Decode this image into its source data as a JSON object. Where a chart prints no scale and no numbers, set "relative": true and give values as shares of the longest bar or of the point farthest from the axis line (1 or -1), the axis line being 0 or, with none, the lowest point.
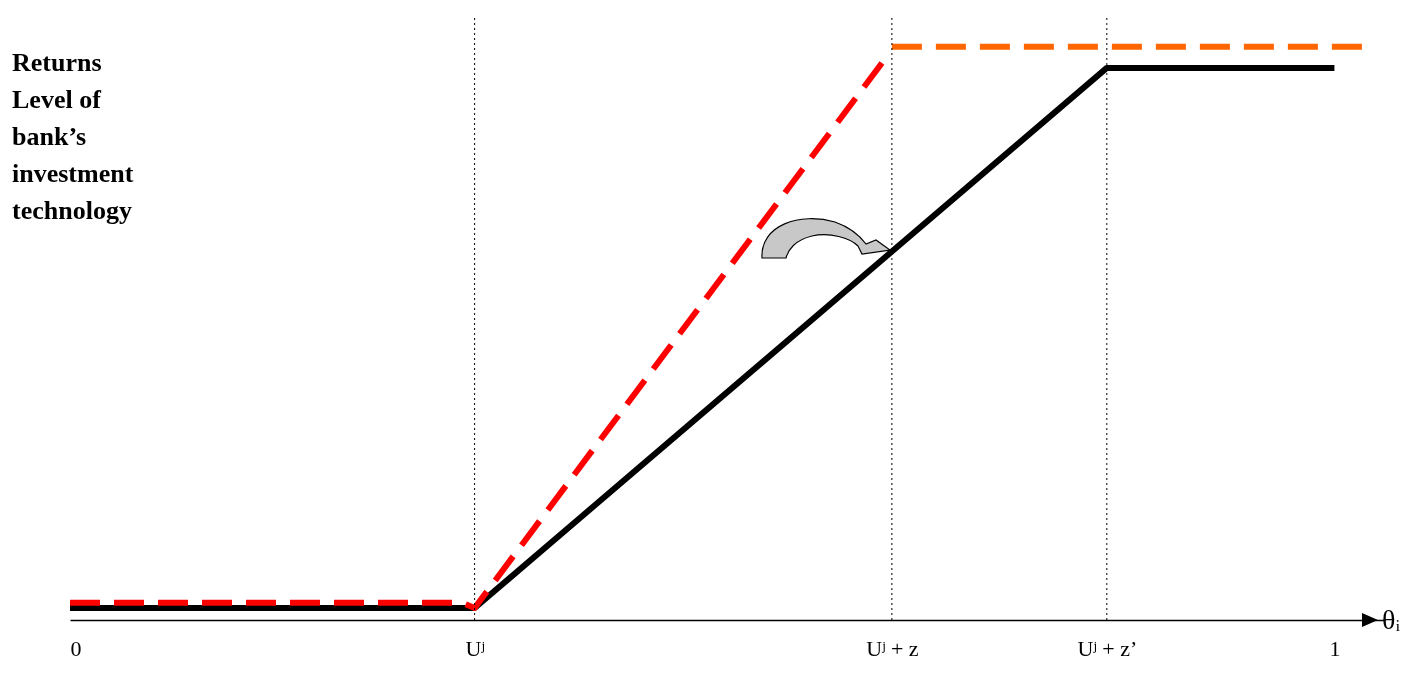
{
  "chart_data": {
    "type": "line",
    "relative": true,
    "ylabel": "Returns Level of bank’s investment technology",
    "xlabel": "θᵢ",
    "xlim": [
      0,
      1.04
    ],
    "xticks": [
      0,
      {
        "value": 0.32,
        "label": "Uʲ"
      },
      {
        "value": 0.65,
        "label": "Uʲ + z"
      },
      {
        "value": 0.82,
        "label": "Uʲ + z’"
      },
      1
    ],
    "series": [
      {
        "color": "#000000",
        "line_style": "solid",
        "x": [
          0,
          0.32,
          0.82,
          1
        ],
        "values": [
          0.021,
          0.021,
          0.963,
          0.963
        ]
      },
      {
        "color": "#ff0000",
        "line_style": "dashed",
        "x": [
          0,
          0.31,
          0.32,
          0.644
        ],
        "values": [
          0.03,
          0.03,
          0.021,
          0.977
        ]
      },
      {
        "color": "#ff6600",
        "line_style": "dashed",
        "x": [
          0.65,
          1.03
        ],
        "values": [
          1,
          1
        ]
      }
    ],
    "ref_lines": [
      {
        "axis": "x",
        "value": 0.32,
        "line_style": "dotted",
        "color": "#000000"
      },
      {
        "axis": "x",
        "value": 0.65,
        "line_style": "dotted",
        "color": "#000000"
      },
      {
        "axis": "x",
        "value": 0.82,
        "line_style": "dotted",
        "color": "#000000"
      }
    ],
    "tick_labels": "x",
    "grid": false,
    "legend": false,
    "marker": "none"
  }
}
